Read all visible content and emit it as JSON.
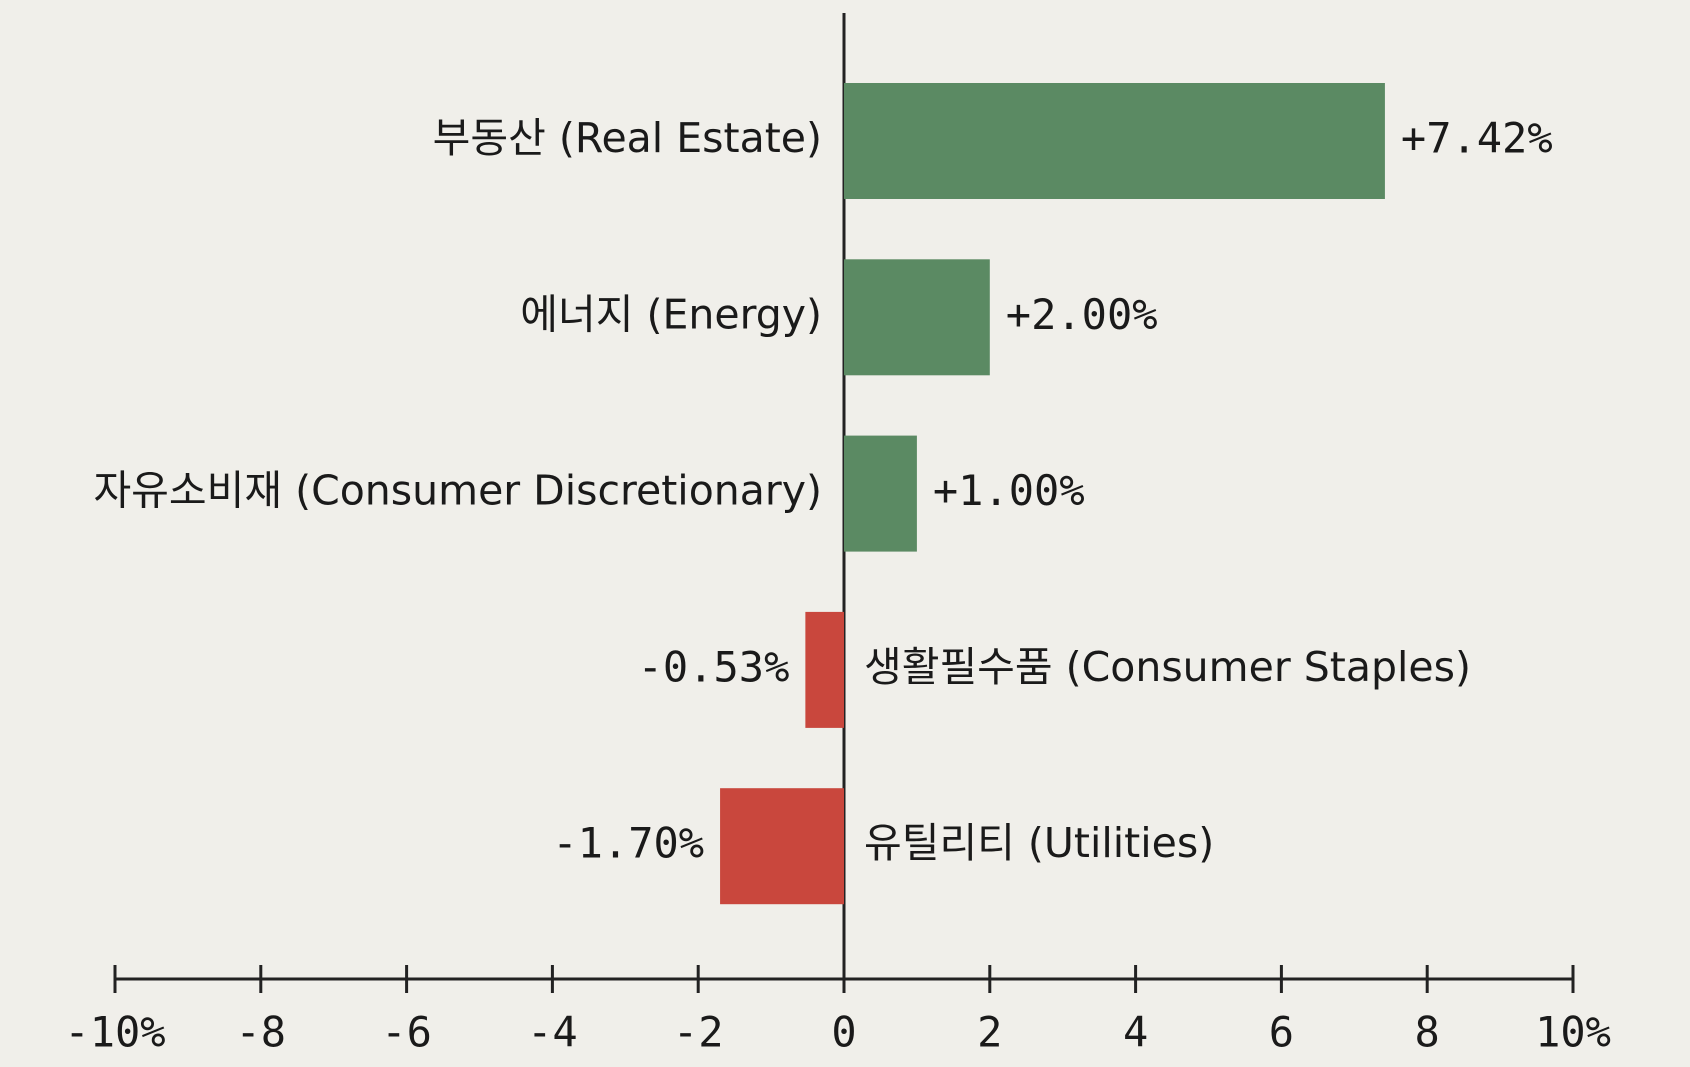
{
  "chart_data": {
    "type": "hbar",
    "categories": [
      "부동산 (Real Estate)",
      "에너지 (Energy)",
      "자유소비재 (Consumer Discretionary)",
      "생활필수품 (Consumer Staples)",
      "유틸리티 (Utilities)"
    ],
    "values": [
      7.42,
      2.0,
      1.0,
      -0.53,
      -1.7
    ],
    "value_labels": [
      "+7.42%",
      "+2.00%",
      "+1.00%",
      "-0.53%",
      "-1.70%"
    ],
    "positive_color": "#5b8a63",
    "negative_color": "#c9473d",
    "xlim": [
      -10,
      10
    ],
    "xticks": [
      {
        "value": -10,
        "label": "-10%"
      },
      -8,
      -6,
      -4,
      -2,
      0,
      2,
      4,
      6,
      8,
      {
        "value": 10,
        "label": "10%"
      }
    ]
  }
}
